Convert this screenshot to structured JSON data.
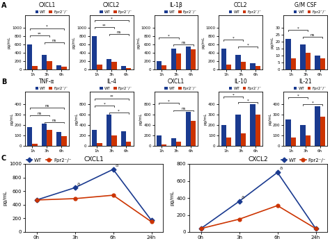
{
  "chart_data": [
    {
      "type": "bar",
      "title": "CXCL1",
      "ylabel": "pg/mL",
      "categories": [
        "1h",
        "3h",
        "6h"
      ],
      "series": [
        {
          "name": "WT",
          "color": "#1a3a8f",
          "values": [
            600,
            350,
            100
          ]
        },
        {
          "name": "Fpr2⁻/⁻",
          "color": "#cc3300",
          "values": [
            80,
            200,
            70
          ]
        }
      ],
      "ylim": [
        0,
        1300
      ],
      "yticks": [
        0,
        200,
        400,
        600,
        800,
        1000
      ],
      "legend": "upper right",
      "annotations": [
        {
          "text": "A"
        },
        {
          "text": "**",
          "from": "1h",
          "to": "3h"
        },
        {
          "text": "*",
          "from": "1h",
          "to": "6h"
        },
        {
          "text": "ns",
          "from": "3h",
          "to": "6h"
        }
      ]
    },
    {
      "type": "bar",
      "title": "CXCL2",
      "ylabel": "pg/mL",
      "categories": [
        "1h",
        "3h",
        "6h"
      ],
      "series": [
        {
          "name": "WT",
          "color": "#1a3a8f",
          "values": [
            800,
            250,
            80
          ]
        },
        {
          "name": "Fpr2⁻/⁻",
          "color": "#cc3300",
          "values": [
            120,
            180,
            40
          ]
        }
      ],
      "ylim": [
        0,
        1300
      ],
      "yticks": [
        0,
        200,
        400,
        600,
        800,
        1000
      ],
      "legend": "upper right",
      "annotations": [
        {
          "text": "**",
          "from": "1h",
          "to": "3h"
        },
        {
          "text": "*",
          "from": "1h",
          "to": "6h"
        },
        {
          "text": "ns",
          "from": "3h",
          "to": "6h"
        }
      ]
    },
    {
      "type": "bar",
      "title": "IL-1β",
      "ylabel": "pg/mL",
      "categories": [
        "1h",
        "3h",
        "6h"
      ],
      "series": [
        {
          "name": "WT",
          "color": "#1a3a8f",
          "values": [
            200,
            500,
            550
          ]
        },
        {
          "name": "Fpr2⁻/⁻",
          "color": "#cc3300",
          "values": [
            100,
            380,
            480
          ]
        }
      ],
      "ylim": [
        0,
        1300
      ],
      "yticks": [
        0,
        200,
        400,
        600,
        800,
        1000
      ],
      "legend": "upper right",
      "annotations": [
        {
          "text": "*",
          "from": "1h",
          "to": "3h"
        },
        {
          "text": "ns",
          "from": "3h",
          "to": "6h"
        }
      ]
    },
    {
      "type": "bar",
      "title": "CCL2",
      "ylabel": "pg/mL",
      "categories": [
        "1h",
        "3h",
        "6h"
      ],
      "series": [
        {
          "name": "WT",
          "color": "#1a3a8f",
          "values": [
            500,
            350,
            150
          ]
        },
        {
          "name": "Fpr2⁻/⁻",
          "color": "#cc3300",
          "values": [
            120,
            180,
            80
          ]
        }
      ],
      "ylim": [
        0,
        1300
      ],
      "yticks": [
        0,
        200,
        400,
        600,
        800,
        1000
      ],
      "legend": "upper right",
      "annotations": [
        {
          "text": "*",
          "from": "1h",
          "to": "3h"
        },
        {
          "text": "*",
          "from": "3h",
          "to": "6h"
        }
      ]
    },
    {
      "type": "bar",
      "title": "G/M CSF",
      "ylabel": "pg/mL",
      "categories": [
        "1h",
        "3h",
        "6h"
      ],
      "series": [
        {
          "name": "WT",
          "color": "#1a3a8f",
          "values": [
            22,
            18,
            10
          ]
        },
        {
          "name": "Fpr2⁻/⁻",
          "color": "#cc3300",
          "values": [
            8,
            12,
            8
          ]
        }
      ],
      "ylim": [
        0,
        39
      ],
      "yticks": [
        0,
        5,
        10,
        15,
        20,
        25,
        30
      ],
      "legend": "upper right",
      "annotations": [
        {
          "text": "*",
          "from": "1h",
          "to": "3h"
        },
        {
          "text": "ns",
          "from": "3h",
          "to": "6h"
        }
      ]
    },
    {
      "type": "bar",
      "title": "TNF-α",
      "ylabel": "pg/mL",
      "categories": [
        "1h",
        "3h",
        "6h"
      ],
      "series": [
        {
          "name": "WT",
          "color": "#1a3a8f",
          "values": [
            180,
            210,
            130
          ]
        },
        {
          "name": "Fpr2⁻/⁻",
          "color": "#cc3300",
          "values": [
            20,
            150,
            90
          ]
        }
      ],
      "ylim": [
        0,
        520
      ],
      "yticks": [
        0,
        100,
        200,
        300,
        400
      ],
      "legend": "upper right",
      "annotations": [
        {
          "text": "B"
        },
        {
          "text": "ns",
          "from": "1h",
          "to": "3h"
        },
        {
          "text": "ns",
          "from": "1h",
          "to": "6h"
        },
        {
          "text": "ns",
          "from": "3h",
          "to": "6h"
        }
      ]
    },
    {
      "type": "bar",
      "title": "IL-4",
      "ylabel": "pg/mL",
      "categories": [
        "1h",
        "3h",
        "6h"
      ],
      "series": [
        {
          "name": "WT",
          "color": "#1a3a8f",
          "values": [
            300,
            600,
            280
          ]
        },
        {
          "name": "Fpr2⁻/⁻",
          "color": "#cc3300",
          "values": [
            50,
            200,
            80
          ]
        }
      ],
      "ylim": [
        0,
        1040
      ],
      "yticks": [
        0,
        200,
        400,
        600,
        800
      ],
      "legend": "upper right",
      "annotations": [
        {
          "text": "*",
          "from": "1h",
          "to": "3h"
        },
        {
          "text": "**",
          "from": "1h",
          "to": "6h"
        },
        {
          "text": "*",
          "from": "3h",
          "to": "6h"
        }
      ]
    },
    {
      "type": "bar",
      "title": "CXCL1",
      "ylabel": "pg/mL",
      "categories": [
        "1h",
        "3h",
        "6h"
      ],
      "series": [
        {
          "name": "WT",
          "color": "#1a3a8f",
          "values": [
            200,
            150,
            650
          ]
        },
        {
          "name": "Fpr2⁻/⁻",
          "color": "#cc3300",
          "values": [
            30,
            80,
            480
          ]
        }
      ],
      "ylim": [
        0,
        1040
      ],
      "yticks": [
        0,
        200,
        400,
        600,
        800
      ],
      "legend": "upper right",
      "annotations": [
        {
          "text": "*",
          "from": "1h",
          "to": "3h"
        },
        {
          "text": "ns",
          "from": "3h",
          "to": "6h"
        }
      ]
    },
    {
      "type": "bar",
      "title": "IL-10",
      "ylabel": "pg/mL",
      "categories": [
        "1h",
        "3h",
        "6h"
      ],
      "series": [
        {
          "name": "WT",
          "color": "#1a3a8f",
          "values": [
            200,
            300,
            400
          ]
        },
        {
          "name": "Fpr2⁻/⁻",
          "color": "#cc3300",
          "values": [
            80,
            120,
            300
          ]
        }
      ],
      "ylim": [
        0,
        520
      ],
      "yticks": [
        0,
        100,
        200,
        300,
        400
      ],
      "legend": "upper right",
      "annotations": [
        {
          "text": "*",
          "from": "1h",
          "to": "3h"
        },
        {
          "text": "*",
          "from": "3h",
          "to": "6h"
        }
      ]
    },
    {
      "type": "bar",
      "title": "IL-21",
      "ylabel": "pg/mL",
      "categories": [
        "1h",
        "3h",
        "6h"
      ],
      "series": [
        {
          "name": "WT",
          "color": "#1a3a8f",
          "values": [
            250,
            200,
            380
          ]
        },
        {
          "name": "Fpr2⁻/⁻",
          "color": "#cc3300",
          "values": [
            80,
            100,
            280
          ]
        }
      ],
      "ylim": [
        0,
        520
      ],
      "yticks": [
        0,
        100,
        200,
        300,
        400
      ],
      "legend": "upper right",
      "annotations": [
        {
          "text": "*",
          "from": "1h",
          "to": "3h"
        },
        {
          "text": "*",
          "from": "3h",
          "to": "6h"
        }
      ]
    },
    {
      "type": "line",
      "title": "CXCL1",
      "ylabel": "pg/mL",
      "categories": [
        "0h",
        "3h",
        "6h",
        "24h"
      ],
      "series": [
        {
          "name": "WT",
          "color": "#1a3a8f",
          "marker": "diamond",
          "values": [
            470,
            650,
            920,
            170
          ]
        },
        {
          "name": "Fpr2⁻/⁻",
          "color": "#cc3300",
          "marker": "circle",
          "values": [
            470,
            490,
            540,
            150
          ]
        }
      ],
      "ylim": [
        0,
        1000
      ],
      "yticks": [
        0,
        200,
        400,
        600,
        800,
        1000
      ],
      "legend": "upper left",
      "annotations": [
        {
          "text": "C"
        },
        {
          "text": "a",
          "x": "3h",
          "series": "WT"
        },
        {
          "text": "a",
          "x": "6h",
          "series": "WT"
        }
      ]
    },
    {
      "type": "line",
      "title": "CXCL2",
      "ylabel": "pg/mL",
      "categories": [
        "0h",
        "3h",
        "6h",
        "24h"
      ],
      "series": [
        {
          "name": "WT",
          "color": "#1a3a8f",
          "marker": "diamond",
          "values": [
            40,
            360,
            700,
            40
          ]
        },
        {
          "name": "Fpr2⁻/⁻",
          "color": "#cc3300",
          "marker": "circle",
          "values": [
            40,
            150,
            310,
            40
          ]
        }
      ],
      "ylim": [
        0,
        800
      ],
      "yticks": [
        0,
        200,
        400,
        600,
        800
      ],
      "legend": "upper right",
      "annotations": [
        {
          "text": "a",
          "x": "3h",
          "series": "WT"
        },
        {
          "text": "a",
          "x": "6h",
          "series": "WT"
        }
      ]
    }
  ]
}
